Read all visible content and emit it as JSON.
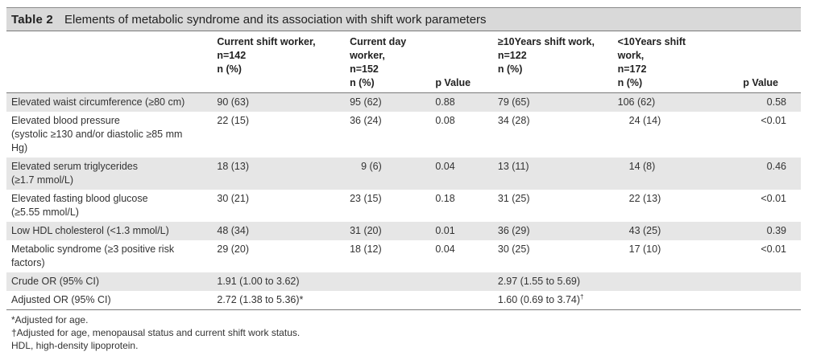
{
  "table": {
    "label": "Table 2",
    "title": "Elements of metabolic syndrome and its association with shift work parameters",
    "headers": [
      "",
      "Current shift worker,\nn=142\nn (%)",
      "Current day worker,\nn=152\nn (%)",
      "p Value",
      "≥10Years shift work,\nn=122\nn (%)",
      "<10Years shift work,\nn=172\nn (%)",
      "p Value"
    ],
    "header_parts": {
      "h1": [
        "Current shift worker,",
        "n=142",
        "n (%)"
      ],
      "h2": [
        "Current day worker,",
        "n=152",
        "n (%)"
      ],
      "h3": [
        "p Value"
      ],
      "h4": [
        "≥10Years shift work,",
        "n=122",
        "n (%)"
      ],
      "h5": [
        "<10Years shift work,",
        "n=172",
        "n (%)"
      ],
      "h6": [
        "p Value"
      ]
    },
    "rows": [
      {
        "label": "Elevated waist circumference (≥80 cm)",
        "c1": "90 (63)",
        "c2": "95 (62)",
        "p1": "0.88",
        "c4": "79 (65)",
        "c5": "106 (62)",
        "p2": "0.58"
      },
      {
        "label": "Elevated blood pressure (systolic ≥130 and/or diastolic ≥85 mm Hg)",
        "c1": "22 (15)",
        "c2": "36 (24)",
        "p1": "0.08",
        "c4": "34 (28)",
        "c5": "24 (14)",
        "p2": "<0.01"
      },
      {
        "label": "Elevated serum triglycerides (≥1.7 mmol/L)",
        "c1": "18 (13)",
        "c2": "9 (6)",
        "p1": "0.04",
        "c4": "13 (11)",
        "c5": "14 (8)",
        "p2": "0.46"
      },
      {
        "label": "Elevated fasting blood glucose (≥5.55 mmol/L)",
        "c1": "30 (21)",
        "c2": "23 (15)",
        "p1": "0.18",
        "c4": "31 (25)",
        "c5": "22 (13)",
        "p2": "<0.01"
      },
      {
        "label": "Low HDL cholesterol (<1.3 mmol/L)",
        "c1": "48 (34)",
        "c2": "31 (20)",
        "p1": "0.01",
        "c4": "36 (29)",
        "c5": "43 (25)",
        "p2": "0.39"
      },
      {
        "label": "Metabolic syndrome (≥3 positive risk factors)",
        "c1": "29 (20)",
        "c2": "18 (12)",
        "p1": "0.04",
        "c4": "30 (25)",
        "c5": "17 (10)",
        "p2": "<0.01"
      },
      {
        "label": "Crude OR (95% CI)",
        "c1": "1.91 (1.00 to 3.62)",
        "c2": "",
        "p1": "",
        "c4": "2.97 (1.55 to 5.69)",
        "c5": "",
        "p2": ""
      },
      {
        "label": "Adjusted OR (95% CI)",
        "c1": "2.72 (1.38 to 5.36)*",
        "c2": "",
        "p1": "",
        "c4": "1.60 (0.69 to 3.74)",
        "c4_sup": "†",
        "c5": "",
        "p2": ""
      }
    ],
    "row_label_lines": [
      [
        "Elevated waist circumference (≥80 cm)"
      ],
      [
        "Elevated blood pressure",
        "(systolic ≥130 and/or diastolic ≥85 mm",
        "Hg)"
      ],
      [
        "Elevated serum triglycerides",
        "(≥1.7 mmol/L)"
      ],
      [
        "Elevated fasting blood glucose",
        "(≥5.55 mmol/L)"
      ],
      [
        "Low HDL cholesterol (<1.3 mmol/L)"
      ],
      [
        "Metabolic syndrome (≥3 positive risk",
        "factors)"
      ],
      [
        "Crude OR (95% CI)"
      ],
      [
        "Adjusted OR (95% CI)"
      ]
    ],
    "footnotes": [
      "*Adjusted for age.",
      "†Adjusted for age, menopausal status and current shift work status.",
      "HDL, high-density lipoprotein."
    ]
  },
  "colors": {
    "shade": "#e6e6e6",
    "title_bg": "#d9d9d9",
    "text": "#333333"
  }
}
